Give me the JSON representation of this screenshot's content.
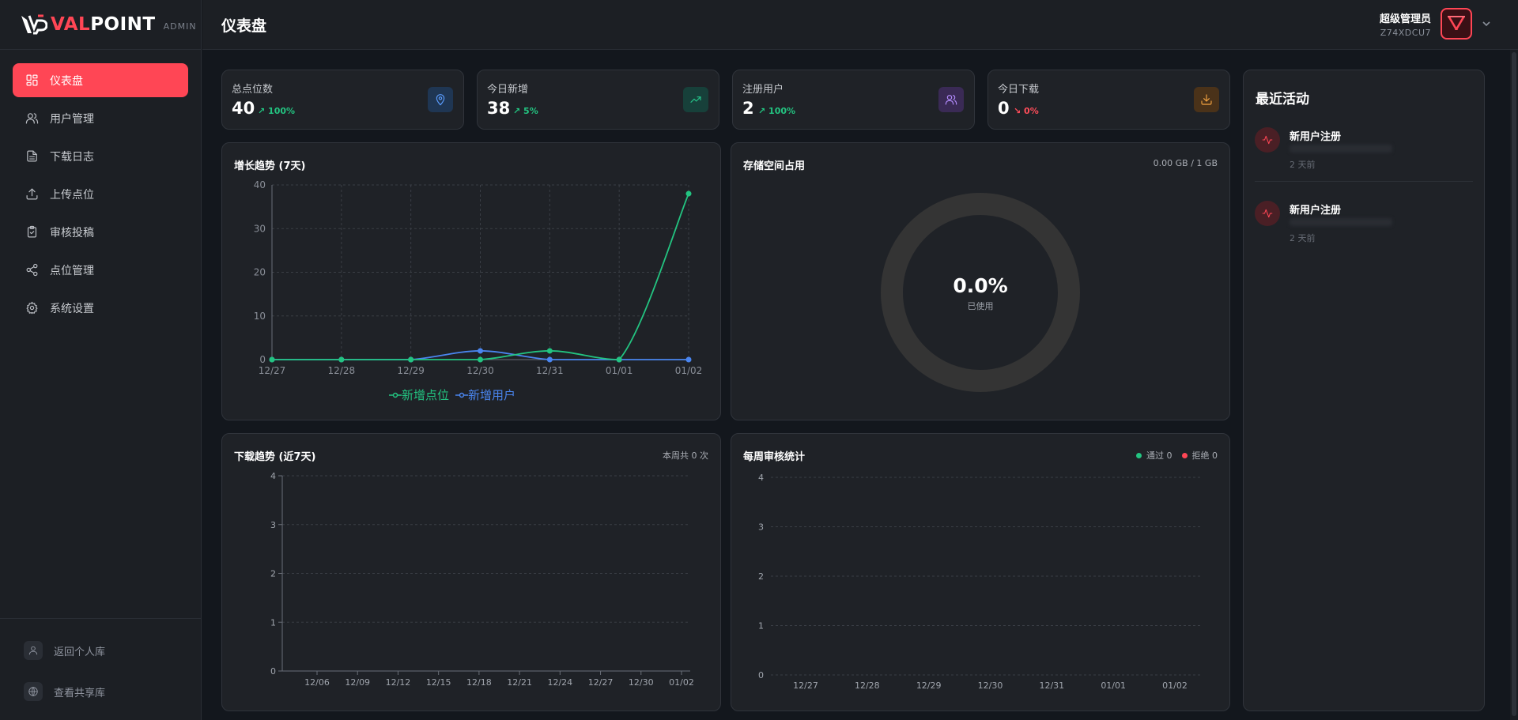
{
  "app": {
    "brand_mark": "V",
    "brand_rest": "POINT",
    "brand_v": "VAL",
    "admin_tag": "ADMIN"
  },
  "header": {
    "title": "仪表盘",
    "user_name": "超级管理员",
    "user_id": "Z74XDCU7"
  },
  "sidebar": {
    "items": [
      {
        "label": "仪表盘",
        "icon": "dashboard-icon"
      },
      {
        "label": "用户管理",
        "icon": "users-icon"
      },
      {
        "label": "下载日志",
        "icon": "file-text-icon"
      },
      {
        "label": "上传点位",
        "icon": "upload-icon"
      },
      {
        "label": "审核投稿",
        "icon": "clipboard-check-icon"
      },
      {
        "label": "点位管理",
        "icon": "share-icon"
      },
      {
        "label": "系统设置",
        "icon": "gear-icon"
      }
    ],
    "bottom": [
      {
        "label": "返回个人库",
        "icon": "user-icon"
      },
      {
        "label": "查看共享库",
        "icon": "globe-icon"
      }
    ]
  },
  "stats": [
    {
      "label": "总点位数",
      "value": "40",
      "change": "100%",
      "trend": "up",
      "icon": "map-pin-icon",
      "icon_bg": "#1f3653",
      "icon_color": "#5b9dff"
    },
    {
      "label": "今日新增",
      "value": "38",
      "change": "5%",
      "trend": "up",
      "icon": "trending-up-icon",
      "icon_bg": "#17403a",
      "icon_color": "#25c48a"
    },
    {
      "label": "注册用户",
      "value": "2",
      "change": "100%",
      "trend": "up",
      "icon": "users-icon",
      "icon_bg": "#3a2a55",
      "icon_color": "#b48cff"
    },
    {
      "label": "今日下载",
      "value": "0",
      "change": "0%",
      "trend": "down",
      "icon": "download-icon",
      "icon_bg": "#4a3219",
      "icon_color": "#f5a442"
    }
  ],
  "growth": {
    "title": "增长趋势 (7天)",
    "chart_data": {
      "type": "line",
      "title": "增长趋势 (7天)",
      "x": [
        "12/27",
        "12/28",
        "12/29",
        "12/30",
        "12/31",
        "01/01",
        "01/02"
      ],
      "ylim": [
        0,
        40
      ],
      "yticks": [
        0,
        10,
        20,
        30,
        40
      ],
      "series": [
        {
          "name": "新增点位",
          "color": "#23c481",
          "values": [
            0,
            0,
            0,
            0,
            2,
            0,
            38
          ]
        },
        {
          "name": "新增用户",
          "color": "#4a86f0",
          "values": [
            0,
            0,
            0,
            2,
            0,
            0,
            0
          ]
        }
      ],
      "legend": "bottom-center",
      "grid": true
    }
  },
  "storage": {
    "title": "存储空间占用",
    "usage_text": "0.00 GB / 1 GB",
    "percent_label": "0.0%",
    "percent": 0.0,
    "sub_label": "已使用"
  },
  "downloads": {
    "title": "下载趋势 (近7天)",
    "summary": "本周共 0 次",
    "chart_data": {
      "type": "line",
      "title": "下载趋势 (近7天)",
      "x": [
        "12/06",
        "12/09",
        "12/12",
        "12/15",
        "12/18",
        "12/21",
        "12/24",
        "12/27",
        "12/30",
        "01/02"
      ],
      "ylim": [
        0,
        4
      ],
      "yticks": [
        0,
        1,
        2,
        3,
        4
      ],
      "series": [],
      "grid": true
    }
  },
  "review": {
    "title": "每周审核统计",
    "pass_label": "通过 0",
    "reject_label": "拒绝 0",
    "pass_color": "#23c481",
    "reject_color": "#ff4655",
    "chart_data": {
      "type": "bar",
      "title": "每周审核统计",
      "categories": [
        "12/27",
        "12/28",
        "12/29",
        "12/30",
        "12/31",
        "01/01",
        "01/02"
      ],
      "ylim": [
        0,
        4
      ],
      "yticks": [
        0,
        1,
        2,
        3,
        4
      ],
      "series": [
        {
          "name": "通过",
          "values": [
            0,
            0,
            0,
            0,
            0,
            0,
            0
          ]
        },
        {
          "name": "拒绝",
          "values": [
            0,
            0,
            0,
            0,
            0,
            0,
            0
          ]
        }
      ],
      "grid": true
    }
  },
  "activity": {
    "title": "最近活动",
    "items": [
      {
        "name": "新用户注册",
        "time": "2 天前"
      },
      {
        "name": "新用户注册",
        "time": "2 天前"
      }
    ]
  }
}
